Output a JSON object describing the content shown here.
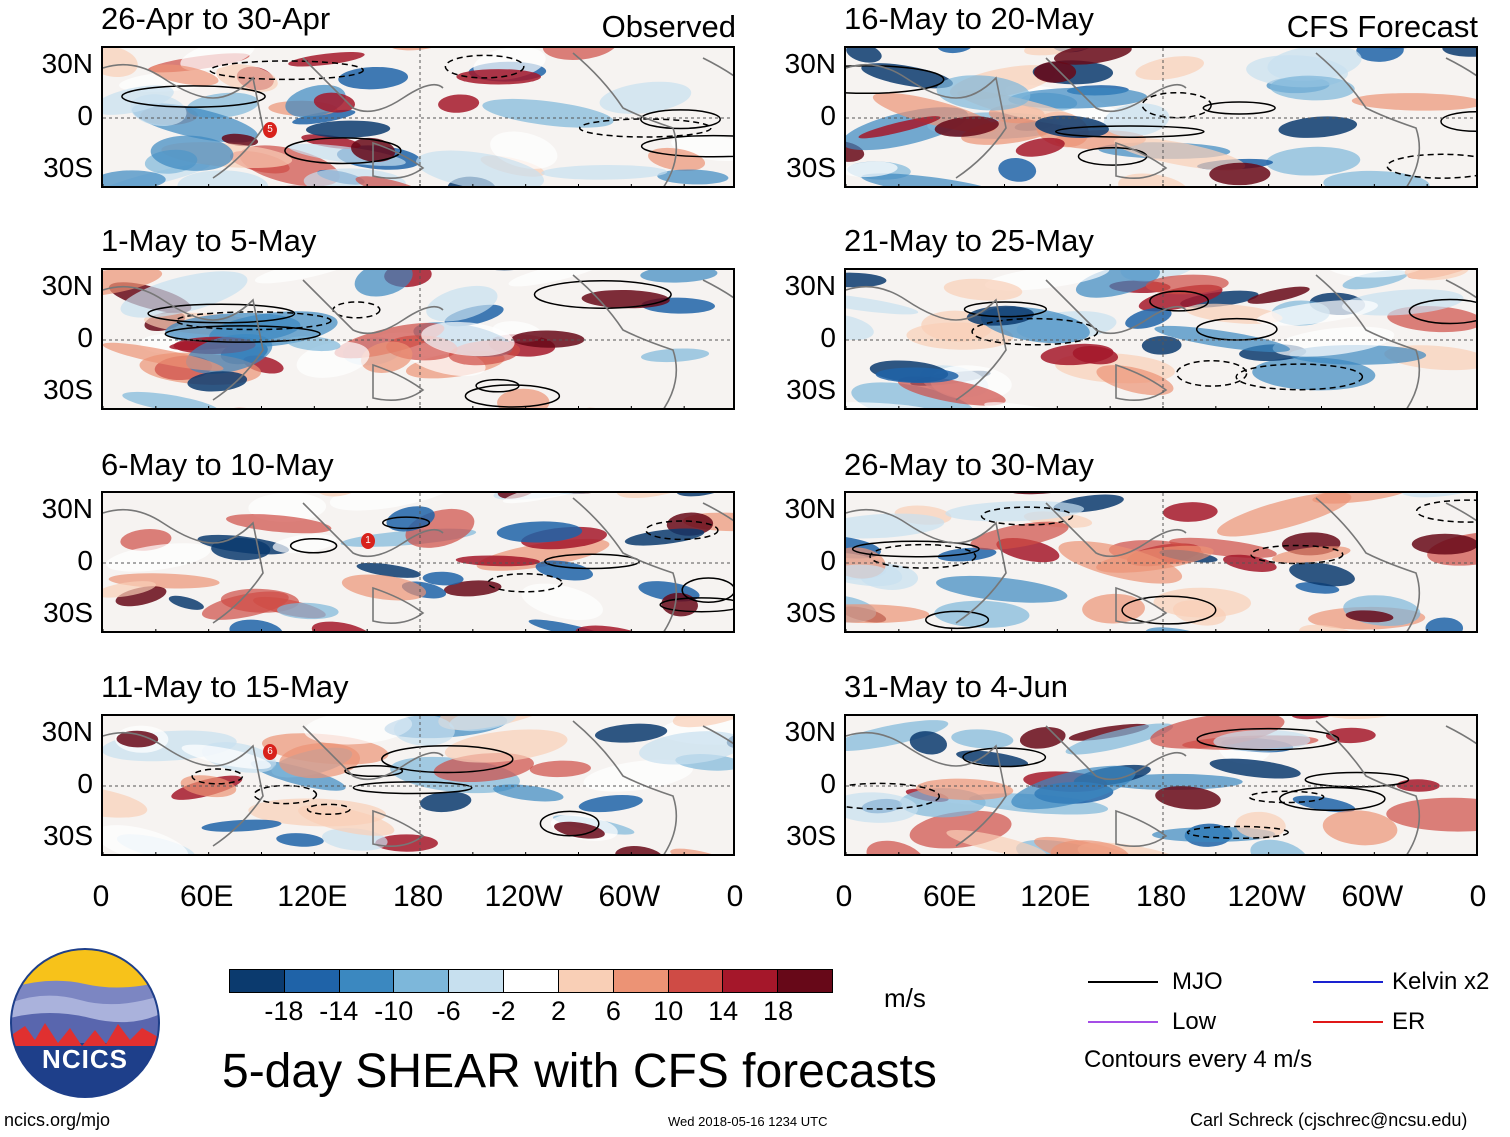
{
  "observed_tag": "Observed",
  "forecast_tag": "CFS Forecast",
  "panels_left": [
    {
      "title": "26-Apr to 30-Apr",
      "pattern": 1,
      "storms": [
        "5"
      ]
    },
    {
      "title": "1-May to 5-May",
      "pattern": 2,
      "storms": []
    },
    {
      "title": "6-May to 10-May",
      "pattern": 3,
      "storms": [
        "1"
      ]
    },
    {
      "title": "11-May to 15-May",
      "pattern": 4,
      "storms": [
        "6"
      ]
    }
  ],
  "panels_right": [
    {
      "title": "16-May to 20-May",
      "pattern": 5,
      "storms": []
    },
    {
      "title": "21-May to 25-May",
      "pattern": 6,
      "storms": []
    },
    {
      "title": "26-May to 30-May",
      "pattern": 7,
      "storms": []
    },
    {
      "title": "31-May to 4-Jun",
      "pattern": 8,
      "storms": []
    }
  ],
  "lat_labels": [
    "30N",
    "0",
    "30S"
  ],
  "lon_labels": [
    "0",
    "60E",
    "120E",
    "180",
    "120W",
    "60W",
    "0"
  ],
  "colorbar": {
    "levels": [
      "-18",
      "-14",
      "-10",
      "-6",
      "-2",
      "2",
      "6",
      "10",
      "14",
      "18"
    ],
    "colors": [
      "#0b3a6e",
      "#1f63a8",
      "#3b88c0",
      "#7db7da",
      "#c7e0ef",
      "#ffffff",
      "#f9cfb6",
      "#ec9375",
      "#cf4b45",
      "#a5172a",
      "#670818"
    ],
    "unit": "m/s"
  },
  "legend": {
    "items": [
      {
        "label": "MJO",
        "color": "#000000"
      },
      {
        "label": "Kelvin x2",
        "color": "#1a22d0"
      },
      {
        "label": "Low",
        "color": "#a54ee6"
      },
      {
        "label": "ER",
        "color": "#e01818"
      }
    ],
    "note": "Contours every 4 m/s"
  },
  "main_title": "5-day SHEAR with CFS forecasts",
  "logo_text": "NCICS",
  "footer": {
    "left": "ncics.org/mjo",
    "center": "Wed 2018-05-16 1234 UTC",
    "right": "Carl Schreck (cjschrec@ncsu.edu)"
  }
}
